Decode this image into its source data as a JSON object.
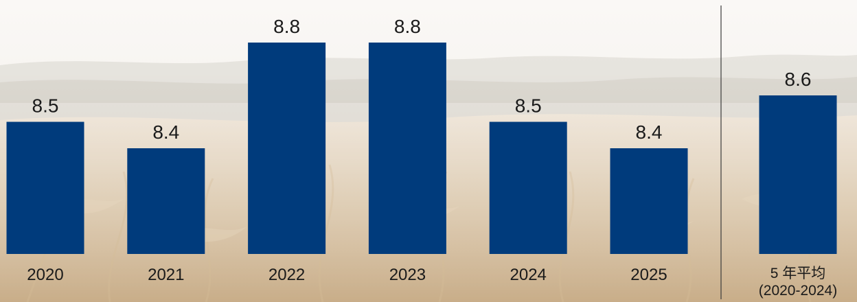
{
  "colors": {
    "bar": "#003b7c",
    "text": "#1a1a1a",
    "divider": "#3a3a3a",
    "sky_top": "#f3efea",
    "sky_bottom": "#e9e1d7",
    "treeline": "#a9a596",
    "field_far": "#e3d3bd",
    "field_mid": "#ceb48f",
    "field_near": "#b9986c",
    "stalk": "#d9c19d"
  },
  "chart_data": {
    "type": "bar",
    "categories": [
      "2020",
      "2021",
      "2022",
      "2023",
      "2024",
      "2025"
    ],
    "values": [
      8.5,
      8.4,
      8.8,
      8.8,
      8.5,
      8.4
    ],
    "data_labels": [
      "8.5",
      "8.4",
      "8.8",
      "8.8",
      "8.5",
      "8.4"
    ],
    "average": {
      "label_line1": "5 年平均",
      "label_line2": "(2020-2024)",
      "value": 8.6,
      "data_label": "8.6"
    },
    "title": "",
    "xlabel": "",
    "ylabel": "",
    "ylim": [
      8.0,
      8.8
    ],
    "grid": false,
    "legend": "none"
  }
}
